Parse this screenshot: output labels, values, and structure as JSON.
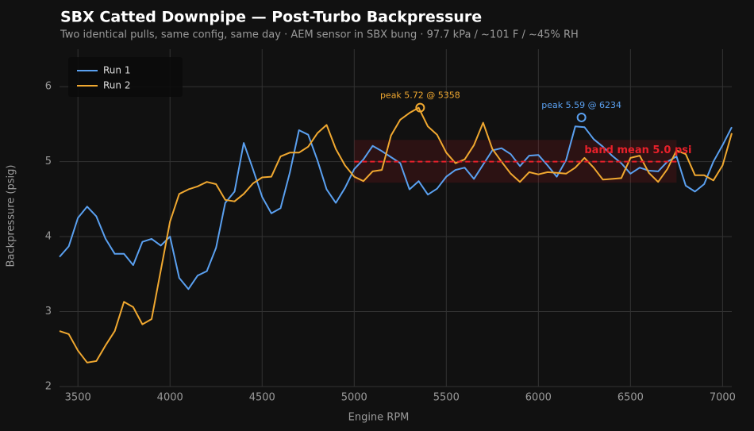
{
  "chart_data": {
    "type": "line",
    "title": "SBX Catted Downpipe — Post-Turbo Backpressure",
    "subtitle": "Two identical pulls, same config, same day · AEM sensor in SBX bung · 97.7 kPa / ~101 F / ~45% RH",
    "x_label": "Engine RPM",
    "y_label": "Backpressure (psig)",
    "x": [
      3400,
      3450,
      3500,
      3550,
      3600,
      3650,
      3700,
      3750,
      3800,
      3850,
      3900,
      3950,
      4000,
      4050,
      4100,
      4150,
      4200,
      4250,
      4300,
      4350,
      4400,
      4450,
      4500,
      4550,
      4600,
      4650,
      4700,
      4750,
      4800,
      4850,
      4900,
      4950,
      5000,
      5050,
      5100,
      5150,
      5200,
      5250,
      5300,
      5350,
      5400,
      5450,
      5500,
      5550,
      5600,
      5650,
      5700,
      5750,
      5800,
      5850,
      5900,
      5950,
      6000,
      6050,
      6100,
      6150,
      6200,
      6250,
      6300,
      6350,
      6400,
      6450,
      6500,
      6550,
      6600,
      6650,
      6700,
      6750,
      6800,
      6850,
      6900,
      6950,
      7000,
      7050
    ],
    "series": [
      {
        "name": "Run 1",
        "color": "#5aa0f0",
        "values": [
          3.73,
          3.87,
          4.25,
          4.4,
          4.27,
          3.97,
          3.77,
          3.77,
          3.62,
          3.93,
          3.97,
          3.88,
          4.0,
          3.45,
          3.3,
          3.48,
          3.54,
          3.85,
          4.45,
          4.6,
          5.25,
          4.9,
          4.53,
          4.31,
          4.38,
          4.85,
          5.42,
          5.36,
          5.02,
          4.63,
          4.45,
          4.65,
          4.9,
          5.03,
          5.21,
          5.14,
          5.06,
          4.98,
          4.63,
          4.74,
          4.56,
          4.64,
          4.8,
          4.89,
          4.92,
          4.77,
          4.96,
          5.15,
          5.18,
          5.1,
          4.94,
          5.08,
          5.09,
          4.95,
          4.8,
          5.02,
          5.47,
          5.46,
          5.3,
          5.2,
          5.08,
          4.98,
          4.84,
          4.92,
          4.88,
          4.87,
          5.0,
          5.07,
          4.68,
          4.6,
          4.7,
          5.0,
          5.22,
          5.46
        ]
      },
      {
        "name": "Run 2",
        "color": "#f0a830",
        "values": [
          2.74,
          2.7,
          2.48,
          2.32,
          2.34,
          2.55,
          2.74,
          3.13,
          3.06,
          2.83,
          2.9,
          3.55,
          4.2,
          4.57,
          4.63,
          4.67,
          4.73,
          4.7,
          4.49,
          4.47,
          4.57,
          4.71,
          4.79,
          4.8,
          5.07,
          5.12,
          5.12,
          5.2,
          5.38,
          5.49,
          5.17,
          4.95,
          4.8,
          4.74,
          4.87,
          4.89,
          5.35,
          5.56,
          5.65,
          5.72,
          5.47,
          5.36,
          5.12,
          4.98,
          5.03,
          5.22,
          5.52,
          5.17,
          5.0,
          4.84,
          4.73,
          4.86,
          4.83,
          4.86,
          4.85,
          4.84,
          4.92,
          5.05,
          4.92,
          4.76,
          4.77,
          4.78,
          5.05,
          5.08,
          4.85,
          4.73,
          4.9,
          5.15,
          5.1,
          4.82,
          4.82,
          4.75,
          4.95,
          5.38
        ]
      }
    ],
    "band": {
      "x": [
        5000,
        6750
      ],
      "y": [
        4.72,
        5.29
      ],
      "mean": 5.0,
      "color": "#e8202a",
      "label": "band mean 5.0 psi"
    },
    "annotations": [
      {
        "text": "peak 5.72 @ 5358",
        "x": 5358,
        "y": 5.72,
        "color": "#f0a830"
      },
      {
        "text": "peak 5.59 @ 6234",
        "x": 6234,
        "y": 5.59,
        "color": "#5aa0f0"
      }
    ],
    "xlim": [
      3400,
      7050
    ],
    "ylim": [
      2,
      6.5
    ],
    "xticks": [
      3500,
      4000,
      4500,
      5000,
      5500,
      6000,
      6500,
      7000
    ],
    "yticks": [
      2,
      3,
      4,
      5,
      6
    ],
    "grid": true,
    "legend": "upper left"
  }
}
